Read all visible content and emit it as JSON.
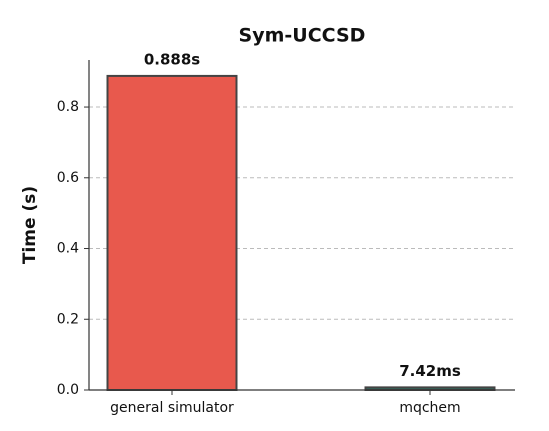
{
  "chart_data": {
    "type": "bar",
    "title": "Sym-UCCSD",
    "y_label": "Time (s)",
    "categories": [
      "general simulator",
      "mqchem"
    ],
    "values": [
      0.888,
      0.00742
    ],
    "value_labels": [
      "0.888s",
      "7.42ms"
    ],
    "colors": [
      "#e8594d",
      "#2d6b5e"
    ],
    "ylim": [
      0,
      0.933
    ],
    "yticks": [
      {
        "value": 0,
        "label": "0.0"
      },
      0.2,
      0.4,
      0.6,
      0.8
    ],
    "grid": true
  }
}
